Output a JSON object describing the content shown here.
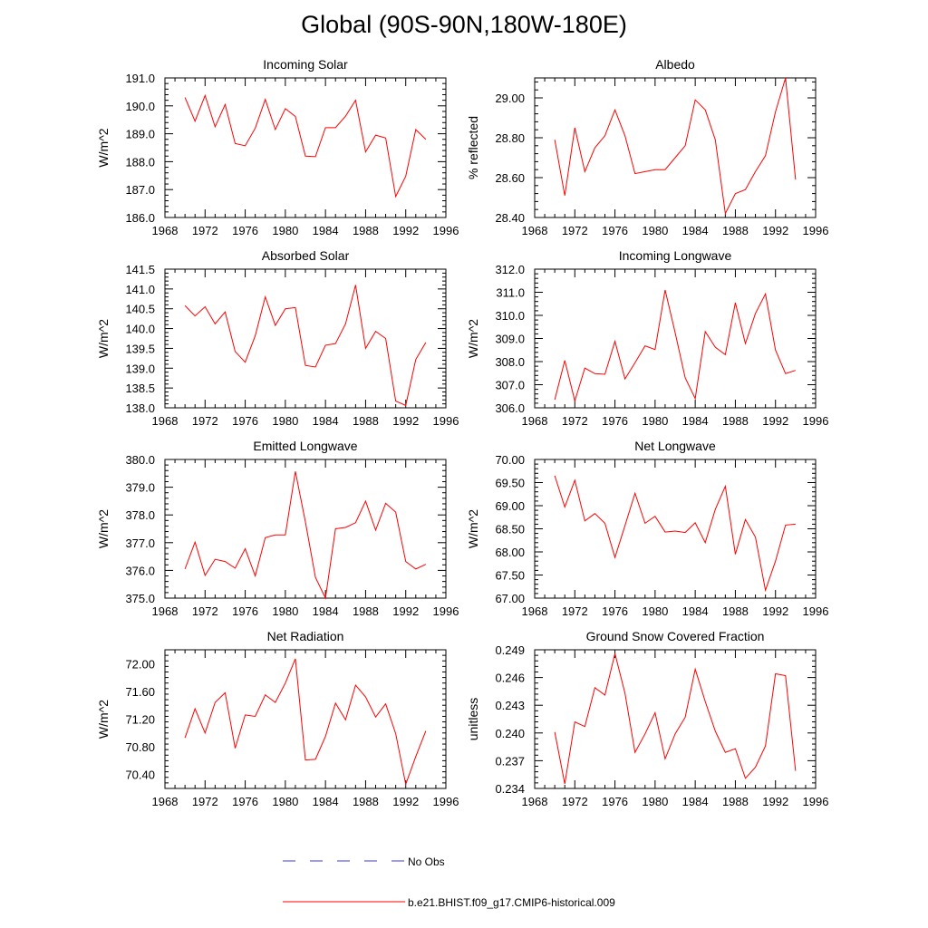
{
  "figure": {
    "title": "Global (90S-90N,180W-180E)",
    "legend": [
      {
        "label": "No Obs",
        "style": "dashed",
        "color": "#3b3bd4"
      },
      {
        "label": "b.e21.BHIST.f09_g17.CMIP6-historical.009",
        "style": "solid",
        "color": "#ff0000"
      }
    ],
    "line_color": "#ff0000"
  },
  "chart_data": [
    {
      "type": "line",
      "title": "Incoming Solar",
      "xlabel": "",
      "ylabel": "W/m^2",
      "xlim": [
        1968,
        1996
      ],
      "ylim": [
        186.0,
        191.0
      ],
      "xticks": [
        "1968",
        "1972",
        "1976",
        "1980",
        "1984",
        "1988",
        "1992",
        "1996"
      ],
      "yticks": [
        "186.0",
        "187.0",
        "188.0",
        "189.0",
        "190.0",
        "191.0"
      ],
      "x": [
        1970,
        1971,
        1972,
        1973,
        1974,
        1975,
        1976,
        1977,
        1978,
        1979,
        1980,
        1981,
        1982,
        1983,
        1984,
        1985,
        1986,
        1987,
        1988,
        1989,
        1990,
        1991,
        1992,
        1993,
        1994
      ],
      "series": [
        {
          "name": "b.e21.BHIST.f09_g17.CMIP6-historical.009",
          "values": [
            190.3,
            189.45,
            190.37,
            189.25,
            190.05,
            188.65,
            188.57,
            189.2,
            190.23,
            189.15,
            189.9,
            189.62,
            188.2,
            188.18,
            189.22,
            189.22,
            189.63,
            190.2,
            188.35,
            188.95,
            188.85,
            186.75,
            187.48,
            189.15,
            188.8
          ]
        }
      ]
    },
    {
      "type": "line",
      "title": "Albedo",
      "xlabel": "",
      "ylabel": "% reflected",
      "xlim": [
        1968,
        1996
      ],
      "ylim": [
        28.4,
        29.1
      ],
      "xticks": [
        "1968",
        "1972",
        "1976",
        "1980",
        "1984",
        "1988",
        "1992",
        "1996"
      ],
      "yticks": [
        "28.40",
        "28.60",
        "28.80",
        "29.00"
      ],
      "x": [
        1970,
        1971,
        1972,
        1973,
        1974,
        1975,
        1976,
        1977,
        1978,
        1979,
        1980,
        1981,
        1982,
        1983,
        1984,
        1985,
        1986,
        1987,
        1988,
        1989,
        1990,
        1991,
        1992,
        1993,
        1994
      ],
      "series": [
        {
          "name": "b.e21.BHIST.f09_g17.CMIP6-historical.009",
          "values": [
            28.79,
            28.51,
            28.85,
            28.63,
            28.75,
            28.81,
            28.94,
            28.81,
            28.62,
            28.63,
            28.64,
            28.64,
            28.7,
            28.76,
            28.99,
            28.94,
            28.79,
            28.42,
            28.52,
            28.54,
            28.63,
            28.71,
            28.93,
            29.1,
            28.59
          ]
        }
      ]
    },
    {
      "type": "line",
      "title": "Absorbed Solar",
      "xlabel": "",
      "ylabel": "W/m^2",
      "xlim": [
        1968,
        1996
      ],
      "ylim": [
        138.0,
        141.5
      ],
      "xticks": [
        "1968",
        "1972",
        "1976",
        "1980",
        "1984",
        "1988",
        "1992",
        "1996"
      ],
      "yticks": [
        "138.0",
        "138.5",
        "139.0",
        "139.5",
        "140.0",
        "140.5",
        "141.0",
        "141.5"
      ],
      "x": [
        1970,
        1971,
        1972,
        1973,
        1974,
        1975,
        1976,
        1977,
        1978,
        1979,
        1980,
        1981,
        1982,
        1983,
        1984,
        1985,
        1986,
        1987,
        1988,
        1989,
        1990,
        1991,
        1992,
        1993,
        1994
      ],
      "series": [
        {
          "name": "b.e21.BHIST.f09_g17.CMIP6-historical.009",
          "values": [
            140.58,
            140.32,
            140.55,
            140.12,
            140.42,
            139.42,
            139.15,
            139.82,
            140.8,
            140.08,
            140.5,
            140.53,
            139.07,
            139.03,
            139.58,
            139.62,
            140.12,
            141.1,
            139.5,
            139.93,
            139.75,
            138.17,
            138.06,
            139.22,
            139.65
          ]
        }
      ]
    },
    {
      "type": "line",
      "title": "Incoming Longwave",
      "xlabel": "",
      "ylabel": "W/m^2",
      "xlim": [
        1968,
        1996
      ],
      "ylim": [
        306.0,
        312.0
      ],
      "xticks": [
        "1968",
        "1972",
        "1976",
        "1980",
        "1984",
        "1988",
        "1992",
        "1996"
      ],
      "yticks": [
        "306.0",
        "307.0",
        "308.0",
        "309.0",
        "310.0",
        "311.0",
        "312.0"
      ],
      "x": [
        1970,
        1971,
        1972,
        1973,
        1974,
        1975,
        1976,
        1977,
        1978,
        1979,
        1980,
        1981,
        1982,
        1983,
        1984,
        1985,
        1986,
        1987,
        1988,
        1989,
        1990,
        1991,
        1992,
        1993,
        1994
      ],
      "series": [
        {
          "name": "b.e21.BHIST.f09_g17.CMIP6-historical.009",
          "values": [
            306.35,
            308.05,
            306.3,
            307.72,
            307.48,
            307.45,
            308.88,
            307.25,
            307.95,
            308.68,
            308.52,
            311.1,
            309.25,
            307.3,
            306.4,
            309.3,
            308.62,
            308.3,
            310.55,
            308.78,
            310.08,
            310.93,
            308.5,
            307.48,
            307.62
          ]
        }
      ]
    },
    {
      "type": "line",
      "title": "Emitted Longwave",
      "xlabel": "",
      "ylabel": "W/m^2",
      "xlim": [
        1968,
        1996
      ],
      "ylim": [
        375.0,
        380.0
      ],
      "xticks": [
        "1968",
        "1972",
        "1976",
        "1980",
        "1984",
        "1988",
        "1992",
        "1996"
      ],
      "yticks": [
        "375.0",
        "376.0",
        "377.0",
        "378.0",
        "379.0",
        "380.0"
      ],
      "x": [
        1970,
        1971,
        1972,
        1973,
        1974,
        1975,
        1976,
        1977,
        1978,
        1979,
        1980,
        1981,
        1982,
        1983,
        1984,
        1985,
        1986,
        1987,
        1988,
        1989,
        1990,
        1991,
        1992,
        1993,
        1994
      ],
      "series": [
        {
          "name": "b.e21.BHIST.f09_g17.CMIP6-historical.009",
          "values": [
            376.05,
            377.02,
            375.82,
            376.4,
            376.32,
            376.08,
            376.78,
            375.8,
            377.18,
            377.28,
            377.28,
            379.57,
            377.75,
            375.75,
            375.0,
            377.5,
            377.55,
            377.72,
            378.5,
            377.45,
            378.42,
            378.1,
            376.32,
            376.05,
            376.22
          ]
        }
      ]
    },
    {
      "type": "line",
      "title": "Net Longwave",
      "xlabel": "",
      "ylabel": "W/m^2",
      "xlim": [
        1968,
        1996
      ],
      "ylim": [
        67.0,
        70.0
      ],
      "xticks": [
        "1968",
        "1972",
        "1976",
        "1980",
        "1984",
        "1988",
        "1992",
        "1996"
      ],
      "yticks": [
        "67.00",
        "67.50",
        "68.00",
        "68.50",
        "69.00",
        "69.50",
        "70.00"
      ],
      "x": [
        1970,
        1971,
        1972,
        1973,
        1974,
        1975,
        1976,
        1977,
        1978,
        1979,
        1980,
        1981,
        1982,
        1983,
        1984,
        1985,
        1986,
        1987,
        1988,
        1989,
        1990,
        1991,
        1992,
        1993,
        1994
      ],
      "series": [
        {
          "name": "b.e21.BHIST.f09_g17.CMIP6-historical.009",
          "values": [
            69.65,
            68.97,
            69.55,
            68.67,
            68.83,
            68.62,
            67.88,
            68.57,
            69.27,
            68.62,
            68.77,
            68.43,
            68.45,
            68.42,
            68.63,
            68.2,
            68.92,
            69.42,
            67.95,
            68.7,
            68.32,
            67.17,
            67.8,
            68.58,
            68.6
          ]
        }
      ]
    },
    {
      "type": "line",
      "title": "Net Radiation",
      "xlabel": "",
      "ylabel": "W/m^2",
      "xlim": [
        1968,
        1996
      ],
      "ylim": [
        70.2,
        72.2
      ],
      "xticks": [
        "1968",
        "1972",
        "1976",
        "1980",
        "1984",
        "1988",
        "1992",
        "1996"
      ],
      "yticks": [
        "70.40",
        "70.80",
        "71.20",
        "71.60",
        "72.00"
      ],
      "x": [
        1970,
        1971,
        1972,
        1973,
        1974,
        1975,
        1976,
        1977,
        1978,
        1979,
        1980,
        1981,
        1982,
        1983,
        1984,
        1985,
        1986,
        1987,
        1988,
        1989,
        1990,
        1991,
        1992,
        1993,
        1994
      ],
      "series": [
        {
          "name": "b.e21.BHIST.f09_g17.CMIP6-historical.009",
          "values": [
            70.93,
            71.35,
            71.0,
            71.44,
            71.58,
            70.78,
            71.26,
            71.24,
            71.55,
            71.44,
            71.72,
            72.07,
            70.61,
            70.62,
            70.95,
            71.43,
            71.19,
            71.69,
            71.52,
            71.23,
            71.42,
            70.99,
            70.26,
            70.66,
            71.03
          ]
        }
      ]
    },
    {
      "type": "line",
      "title": "Ground Snow Covered Fraction",
      "xlabel": "",
      "ylabel": "unitless",
      "xlim": [
        1968,
        1996
      ],
      "ylim": [
        0.234,
        0.249
      ],
      "xticks": [
        "1968",
        "1972",
        "1976",
        "1980",
        "1984",
        "1988",
        "1992",
        "1996"
      ],
      "yticks": [
        "0.234",
        "0.237",
        "0.240",
        "0.243",
        "0.246",
        "0.249"
      ],
      "x": [
        1970,
        1971,
        1972,
        1973,
        1974,
        1975,
        1976,
        1977,
        1978,
        1979,
        1980,
        1981,
        1982,
        1983,
        1984,
        1985,
        1986,
        1987,
        1988,
        1989,
        1990,
        1991,
        1992,
        1993,
        1994
      ],
      "series": [
        {
          "name": "b.e21.BHIST.f09_g17.CMIP6-historical.009",
          "values": [
            0.2401,
            0.2345,
            0.2412,
            0.2407,
            0.2449,
            0.2441,
            0.2486,
            0.2443,
            0.2379,
            0.2399,
            0.2422,
            0.2372,
            0.2399,
            0.2417,
            0.2469,
            0.2434,
            0.2402,
            0.2379,
            0.2383,
            0.2351,
            0.2363,
            0.2386,
            0.2464,
            0.2462,
            0.2359
          ]
        }
      ]
    }
  ]
}
